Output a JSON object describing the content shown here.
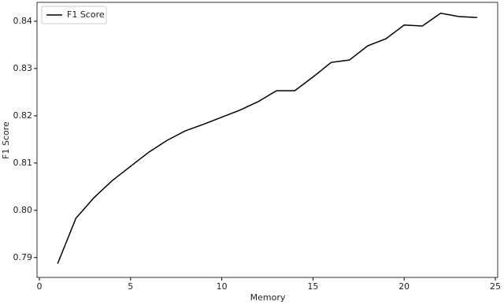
{
  "chart_data": {
    "type": "line",
    "x_label": "Memory",
    "y_label": "F1 Score",
    "x": [
      1,
      2,
      3,
      4,
      5,
      6,
      7,
      8,
      9,
      10,
      11,
      12,
      13,
      14,
      15,
      16,
      17,
      18,
      19,
      20,
      21,
      22,
      23,
      24
    ],
    "series": [
      {
        "name": "F1 Score",
        "color": "#000000",
        "values": [
          0.7887,
          0.7983,
          0.8027,
          0.8063,
          0.8093,
          0.8123,
          0.8148,
          0.8168,
          0.8182,
          0.8197,
          0.8212,
          0.823,
          0.8253,
          0.8253,
          0.8282,
          0.8313,
          0.8318,
          0.8348,
          0.8363,
          0.8392,
          0.839,
          0.8417,
          0.841,
          0.8408
        ]
      }
    ],
    "xlim": [
      -0.13,
      25.13
    ],
    "xticks": [
      0,
      5,
      10,
      15,
      20,
      25
    ],
    "ylim": [
      0.7858,
      0.844
    ],
    "yticks": [
      0.79,
      {
        "value": 0.8,
        "label": "0.80"
      },
      0.81,
      0.82,
      0.83,
      0.84
    ],
    "legend": "upper left"
  }
}
